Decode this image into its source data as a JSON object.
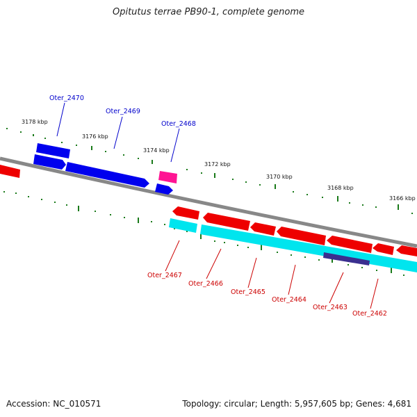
{
  "title": "Opitutus terrae PB90-1, complete genome",
  "footer": {
    "accession": "Accession: NC_010571",
    "topology": "Topology: circular; Length: 5,957,605 bp; Genes: 4,681"
  },
  "ticks": [
    "3178 kbp",
    "3176 kbp",
    "3174 kbp",
    "3172 kbp",
    "3170 kbp",
    "3168 kbp",
    "3166 kbp"
  ],
  "gene_labels_top": [
    "Oter_2470",
    "Oter_2469",
    "Oter_2468"
  ],
  "gene_labels_bottom": [
    "Oter_2467",
    "Oter_2466",
    "Oter_2465",
    "Oter_2464",
    "Oter_2463",
    "Oter_2462"
  ],
  "colors": {
    "forward_gene": "#0000ee",
    "forward_gene_highlight": "#ff1493",
    "reverse_gene": "#ee0000",
    "reverse_feature": "#00e5ee",
    "reverse_feature_dark": "#3a2f8f",
    "backbone": "#888888",
    "tick": "#1a7a1a",
    "top_label": "#0000cc",
    "bottom_label": "#cc0000"
  }
}
